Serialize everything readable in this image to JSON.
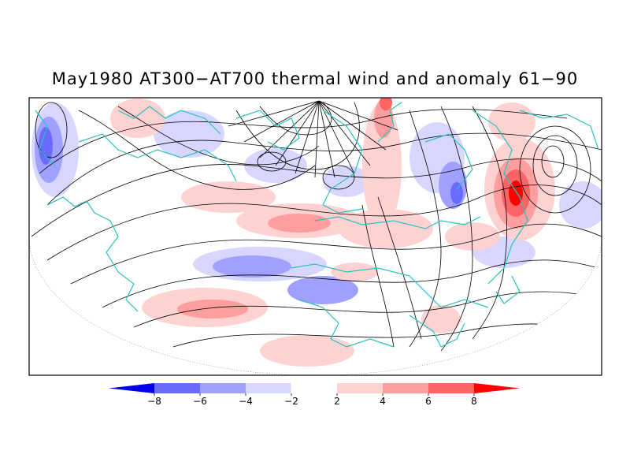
{
  "title": "May1980 AT300−AT700 thermal wind and anomaly 61−90",
  "colorbar": {
    "labels": [
      "−8",
      "−6",
      "−4",
      "−2",
      "2",
      "4",
      "6",
      "8"
    ],
    "colors": [
      "#0000ee",
      "#6a6aff",
      "#a0a0ff",
      "#d6d6ff",
      "#ffffff",
      "#ffd2d2",
      "#ff9e9e",
      "#ff6464",
      "#ff0000"
    ]
  },
  "colors": {
    "coastline": "#2ac2bc",
    "streamline": "#000000",
    "frame": "#000000"
  }
}
